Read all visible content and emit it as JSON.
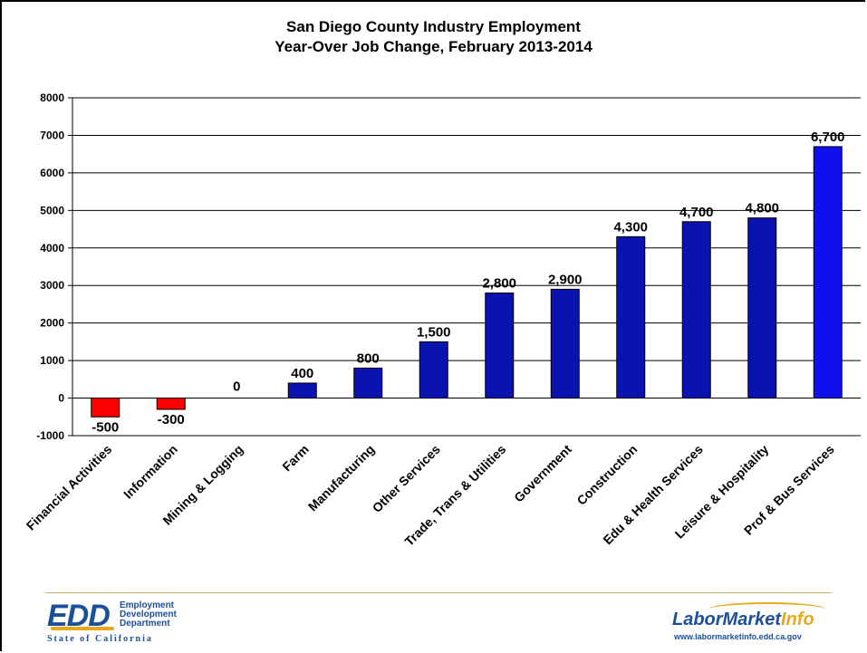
{
  "chart_data": {
    "type": "bar",
    "title": "San Diego County Industry Employment",
    "subtitle": "Year-Over Job Change, February 2013-2014",
    "categories": [
      "Financial Activities",
      "Information",
      "Mining & Logging",
      "Farm",
      "Manufacturing",
      "Other Services",
      "Trade, Trans & Utilities",
      "Government",
      "Construction",
      "Edu & Health Services",
      "Leisure & Hospitality",
      "Prof & Bus Services"
    ],
    "values": [
      -500,
      -300,
      0,
      400,
      800,
      1500,
      2800,
      2900,
      4300,
      4700,
      4800,
      6700
    ],
    "data_labels": [
      "-500",
      "-300",
      "0",
      "400",
      "800",
      "1,500",
      "2,800",
      "2,900",
      "4,300",
      "4,700",
      "4,800",
      "6,700"
    ],
    "ylim": [
      -1000,
      8000
    ],
    "yticks": [
      "-1000",
      "0",
      "1000",
      "2000",
      "3000",
      "4000",
      "5000",
      "6000",
      "7000",
      "8000"
    ],
    "grid": true,
    "colors": {
      "negative": "#ff0000",
      "positive": "#0a12b0",
      "highlight": "#1010ee"
    }
  },
  "logos": {
    "edd_mark": "EDD",
    "edd_name_1": "Employment",
    "edd_name_2": "Development",
    "edd_name_3": "Department",
    "edd_state": "State of California",
    "lmi_mark_1": "LaborMarket",
    "lmi_mark_2": "Info",
    "lmi_url": "www.labormarketinfo.edd.ca.gov"
  }
}
